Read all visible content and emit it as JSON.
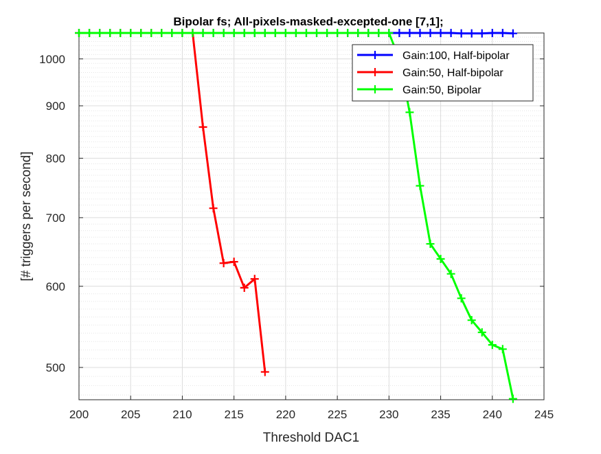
{
  "chart_data": {
    "type": "line",
    "title": "Bipolar fs; All-pixels-masked-excepted-one [7,1];",
    "xlabel": "Threshold DAC1",
    "ylabel": "[# triggers per second]",
    "xlim": [
      200,
      245
    ],
    "ylim": [
      465,
      1060
    ],
    "yscale": "log",
    "grid": true,
    "minor_grid": true,
    "legend_position": "top-right",
    "x_ticks": [
      200,
      205,
      210,
      215,
      220,
      225,
      230,
      235,
      240,
      245
    ],
    "y_ticks": [
      500,
      600,
      700,
      800,
      900,
      1000
    ],
    "x_tick_labels": [
      "200",
      "205",
      "210",
      "215",
      "220",
      "225",
      "230",
      "235",
      "240",
      "245"
    ],
    "y_tick_labels": [
      "500",
      "600",
      "700",
      "800",
      "900",
      "1000"
    ],
    "series": [
      {
        "name": "Gain:100, Half-bipolar",
        "color": "#0000ff",
        "x": [
          200,
          201,
          202,
          203,
          204,
          205,
          206,
          207,
          208,
          209,
          210,
          211,
          212,
          213,
          214,
          215,
          216,
          217,
          218,
          219,
          220,
          221,
          222,
          223,
          224,
          225,
          226,
          227,
          228,
          229,
          230,
          231,
          232,
          233,
          234,
          235,
          236,
          237,
          238,
          239,
          240,
          241,
          242
        ],
        "y": [
          1060,
          1060,
          1060,
          1060,
          1060,
          1060,
          1060,
          1060,
          1060,
          1060,
          1060,
          1060,
          1060,
          1060,
          1060,
          1060,
          1060,
          1060,
          1060,
          1060,
          1060,
          1060,
          1060,
          1060,
          1060,
          1060,
          1060,
          1060,
          1060,
          1060,
          1060,
          1060,
          1060,
          1060,
          1060,
          1060,
          1060,
          1059,
          1059,
          1059,
          1060,
          1060,
          1059
        ]
      },
      {
        "name": "Gain:50, Half-bipolar",
        "color": "#ff0000",
        "x": [
          200,
          201,
          202,
          203,
          204,
          205,
          206,
          207,
          208,
          209,
          210,
          211,
          212,
          213,
          214,
          215,
          216,
          217,
          218
        ],
        "y": [
          1060,
          1060,
          1060,
          1060,
          1060,
          1060,
          1060,
          1060,
          1060,
          1060,
          1060,
          1060,
          858,
          715,
          632,
          634,
          598,
          610,
          495
        ]
      },
      {
        "name": "Gain:50, Bipolar",
        "color": "#00ff00",
        "x": [
          200,
          201,
          202,
          203,
          204,
          205,
          206,
          207,
          208,
          209,
          210,
          211,
          212,
          213,
          214,
          215,
          216,
          217,
          218,
          219,
          220,
          221,
          222,
          223,
          224,
          225,
          226,
          227,
          228,
          229,
          230,
          231,
          232,
          233,
          234,
          235,
          236,
          237,
          238,
          239,
          240,
          241,
          242
        ],
        "y": [
          1060,
          1060,
          1060,
          1060,
          1060,
          1060,
          1060,
          1060,
          1060,
          1060,
          1060,
          1060,
          1060,
          1060,
          1060,
          1060,
          1060,
          1060,
          1060,
          1060,
          1060,
          1060,
          1060,
          1060,
          1060,
          1060,
          1060,
          1060,
          1060,
          1060,
          1060,
          1000,
          887,
          752,
          660,
          638,
          617,
          584,
          556,
          541,
          526,
          521,
          466
        ]
      }
    ]
  }
}
